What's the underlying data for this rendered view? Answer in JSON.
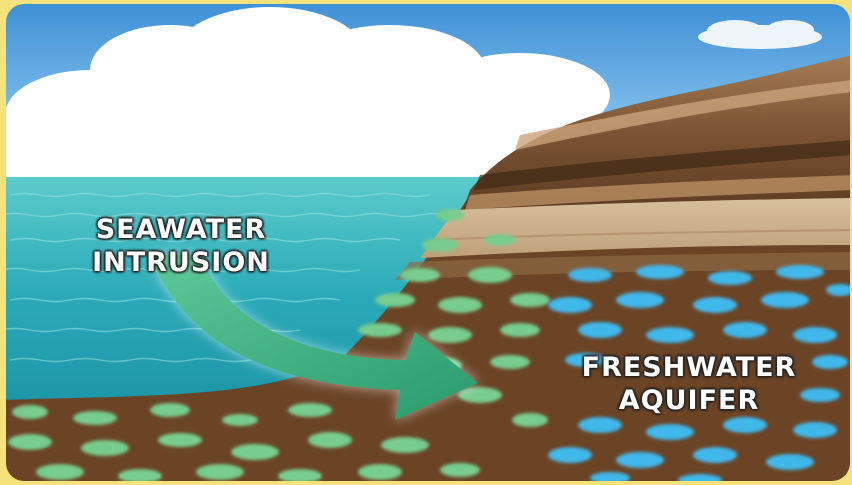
{
  "labels": {
    "seawater_line1": "SEAWATER",
    "seawater_line2": "INTRUSION",
    "freshwater_line1": "FRESHWATER",
    "freshwater_line2": "AQUIFER"
  },
  "colors": {
    "frame": "#f5e27a",
    "sky_top": "#3d8fd6",
    "sky_bottom": "#bfe3f7",
    "cloud": "#ffffff",
    "sea_top": "#4bbfc4",
    "sea_bottom": "#1a8ea0",
    "cliff_dark": "#5e3c1f",
    "cliff_light": "#c8a67c",
    "soil": "#6b4426",
    "saltwater_pocket": "#74c98c",
    "freshwater_pocket": "#3fb6e8",
    "arrow": "#34a978"
  }
}
